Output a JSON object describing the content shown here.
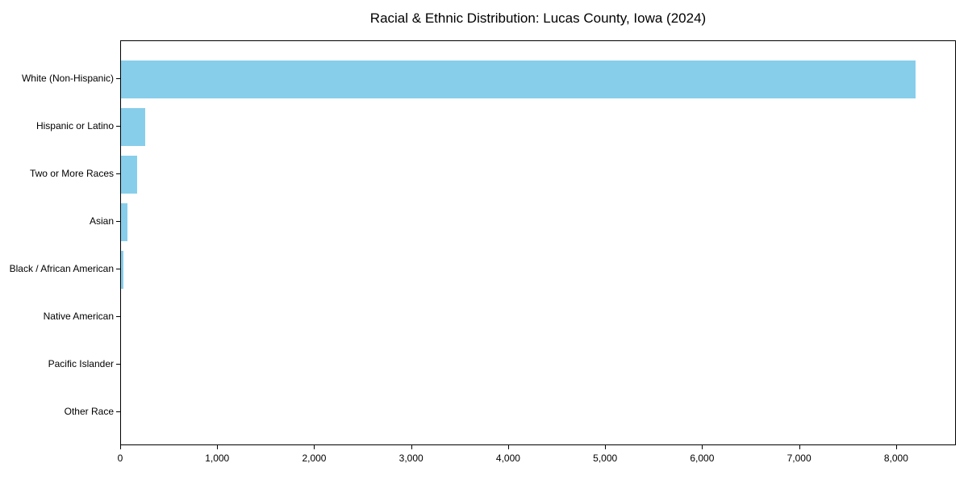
{
  "chart_data": {
    "type": "bar",
    "orientation": "horizontal",
    "title": "Racial & Ethnic Distribution: Lucas County, Iowa (2024)",
    "xlabel": "",
    "ylabel": "",
    "categories": [
      "White (Non-Hispanic)",
      "Hispanic or Latino",
      "Two or More Races",
      "Asian",
      "Black / African American",
      "Native American",
      "Pacific Islander",
      "Other Race"
    ],
    "values": [
      8190,
      250,
      165,
      70,
      25,
      0,
      0,
      0
    ],
    "xlim": [
      0,
      8600
    ],
    "xticks": [
      0,
      1000,
      2000,
      3000,
      4000,
      5000,
      6000,
      7000,
      8000
    ],
    "xtick_labels": [
      "0",
      "1,000",
      "2,000",
      "3,000",
      "4,000",
      "5,000",
      "6,000",
      "7,000",
      "8,000"
    ],
    "bar_color": "#87CEEB",
    "axis_color": "#000000",
    "background_color": "#ffffff",
    "grid": false,
    "legend": null
  }
}
